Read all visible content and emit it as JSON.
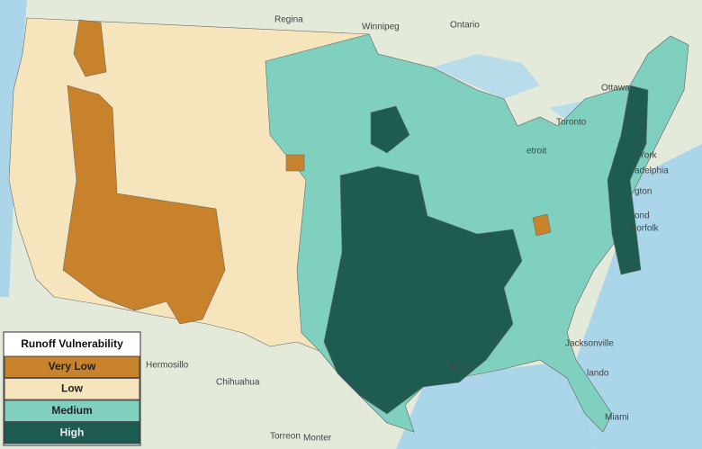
{
  "legend": {
    "title": "Runoff Vulnerability",
    "items": [
      {
        "label": "Very Low",
        "color": "#c8822b"
      },
      {
        "label": "Low",
        "color": "#f6e4bd"
      },
      {
        "label": "Medium",
        "color": "#7fd0bf"
      },
      {
        "label": "High",
        "color": "#1e5c51"
      }
    ]
  },
  "place_labels": [
    "Regina",
    "Winnipeg",
    "Ontario",
    "Ottawa",
    "Toronto",
    "etroit",
    "York",
    "adelphia",
    "gton",
    "ond",
    "Norfolk",
    "Jacksonville",
    "lando",
    "Miami",
    "Hermosillo",
    "Chihuahua",
    "Torreon",
    "Monter",
    "rleans"
  ]
}
